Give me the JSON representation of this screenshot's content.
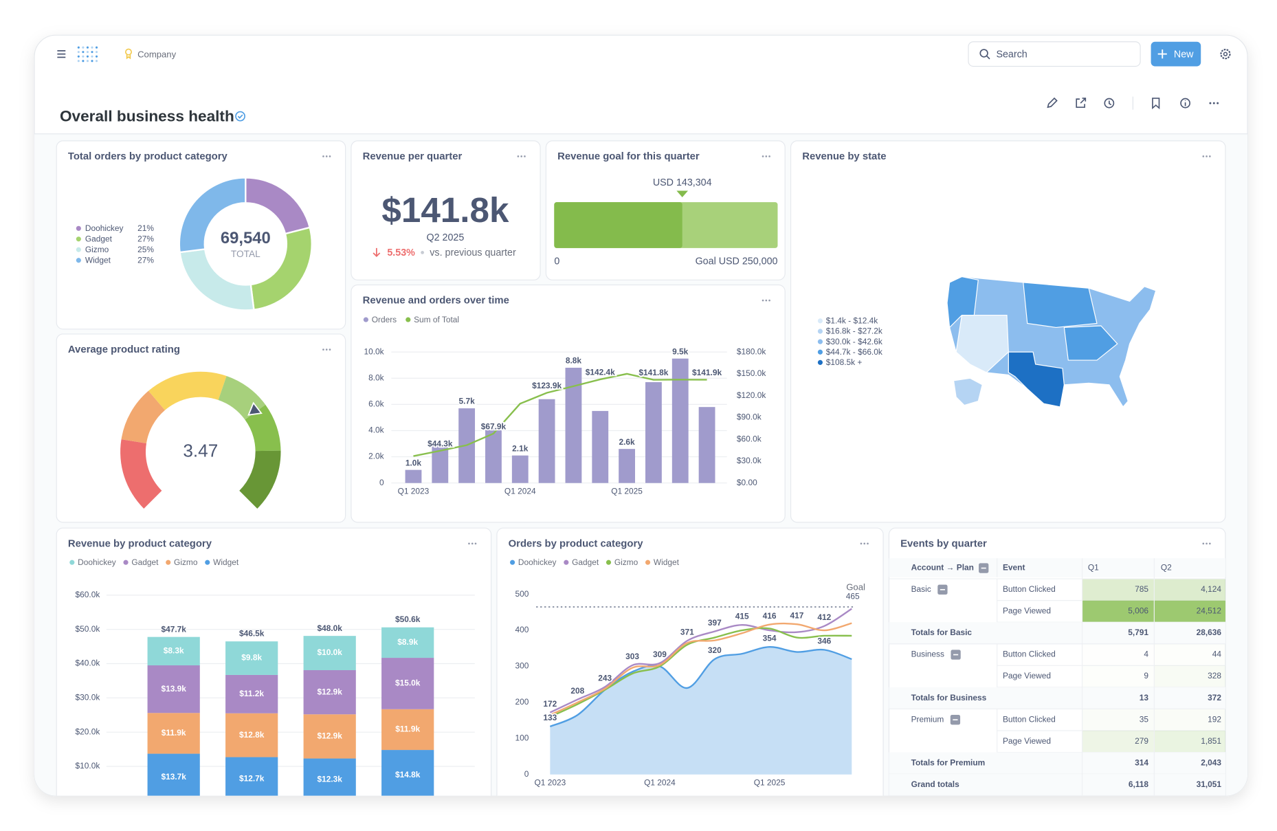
{
  "header": {
    "org": "Company",
    "search": "Search",
    "new_button": "New",
    "title": "Overall business health"
  },
  "chart_data": [
    {
      "type": "donut",
      "title": "Total orders by product category",
      "categories": [
        "Doohickey",
        "Gadget",
        "Gizmo",
        "Widget"
      ],
      "values": [
        21,
        27,
        25,
        27
      ],
      "value_labels": [
        "21%",
        "27%",
        "25%",
        "27%"
      ],
      "colors": [
        "#a989c5",
        "#a5d36e",
        "#c7eaea",
        "#7fb8ea"
      ],
      "total": 69540,
      "total_label": "69,540",
      "center_caption": "TOTAL"
    },
    {
      "type": "scalar",
      "title": "Revenue per quarter",
      "value": 141800,
      "value_label": "$141.8k",
      "period": "Q2 2025",
      "change": 5.53,
      "change_label": "5.53%",
      "direction": "down",
      "comparison": "vs. previous quarter"
    },
    {
      "type": "progress",
      "title": "Revenue goal for this quarter",
      "value": 143304,
      "value_label": "USD 143,304",
      "xlim": [
        0,
        250000
      ],
      "xticks": [
        0,
        {
          "value": 250000,
          "label": "Goal USD 250,000"
        }
      ],
      "colors": [
        "#84bb4c",
        "#a8d17a"
      ]
    },
    {
      "type": "map",
      "title": "Revenue by state",
      "legend": [
        {
          "label": "$1.4k - $12.4k",
          "color": "#d9eaf9"
        },
        {
          "label": "$16.8k - $27.2k",
          "color": "#b5d4f3"
        },
        {
          "label": "$30.0k - $42.6k",
          "color": "#8cbdee"
        },
        {
          "label": "$44.7k - $66.0k",
          "color": "#509ee3"
        },
        {
          "label": "$108.5k +",
          "color": "#1d70c4"
        }
      ]
    },
    {
      "type": "gauge",
      "title": "Average product rating",
      "value": 3.47,
      "range": [
        0,
        5
      ],
      "segments": [
        {
          "from": 0,
          "to": 1,
          "color": "#ed6e6e"
        },
        {
          "from": 1,
          "to": 1.75,
          "color": "#f2a86f"
        },
        {
          "from": 1.75,
          "to": 2.85,
          "color": "#f9d45c"
        },
        {
          "from": 2.85,
          "to": 3.5,
          "color": "#a7d07c"
        },
        {
          "from": 3.5,
          "to": 4.15,
          "color": "#88bf4d"
        },
        {
          "from": 4.15,
          "to": 5,
          "color": "#689636"
        }
      ]
    },
    {
      "type": "combo",
      "title": "Revenue and orders over time",
      "categories": [
        "Q1 2023",
        null,
        null,
        null,
        "Q1 2024",
        null,
        null,
        null,
        "Q1 2025",
        null,
        null,
        null
      ],
      "series": [
        {
          "name": "Orders",
          "display": "bar",
          "color": "#a09bcc",
          "values": [
            1000,
            2800,
            5700,
            4300,
            2100,
            6400,
            8800,
            5500,
            2600,
            7700,
            9500,
            5800
          ],
          "value_labels": [
            "1.0k",
            null,
            "5.7k",
            null,
            "2.1k",
            null,
            "8.8k",
            null,
            "2.6k",
            null,
            "9.5k",
            null
          ]
        },
        {
          "name": "Sum of Total",
          "display": "line",
          "axis": "y2",
          "color": "#88bf4d",
          "values": [
            37000,
            44300,
            52000,
            67900,
            109000,
            123900,
            133000,
            142400,
            150000,
            141800,
            142000,
            141900
          ],
          "value_labels": [
            null,
            "$44.3k",
            null,
            "$67.9k",
            null,
            "$123.9k",
            null,
            "$142.4k",
            null,
            "$141.8k",
            null,
            "$141.9k"
          ]
        }
      ],
      "ylim": [
        0,
        10000
      ],
      "yticks": [
        0,
        {
          "value": 2000,
          "label": "2.0k"
        },
        {
          "value": 4000,
          "label": "4.0k"
        },
        {
          "value": 6000,
          "label": "6.0k"
        },
        {
          "value": 8000,
          "label": "8.0k"
        },
        {
          "value": 10000,
          "label": "10.0k"
        }
      ],
      "y2lim": [
        0,
        180000
      ],
      "y2ticks": [
        {
          "value": 0,
          "label": "$0.00"
        },
        {
          "value": 30000,
          "label": "$30.0k"
        },
        {
          "value": 60000,
          "label": "$60.0k"
        },
        {
          "value": 90000,
          "label": "$90.0k"
        },
        {
          "value": 120000,
          "label": "$120.0k"
        },
        {
          "value": 150000,
          "label": "$150.0k"
        },
        {
          "value": 180000,
          "label": "$180.0k"
        }
      ],
      "grid": true
    },
    {
      "type": "stacked_bar",
      "title": "Revenue by product category",
      "categories": [
        null,
        null,
        null,
        null
      ],
      "series": [
        {
          "name": "Doohickey",
          "color": "#8fd8d8",
          "values": [
            8300,
            9800,
            10000,
            8900
          ],
          "value_labels": [
            "$8.3k",
            "$9.8k",
            "$10.0k",
            "$8.9k"
          ]
        },
        {
          "name": "Gadget",
          "color": "#a989c5",
          "values": [
            13900,
            11200,
            12900,
            15000
          ],
          "value_labels": [
            "$13.9k",
            "$11.2k",
            "$12.9k",
            "$15.0k"
          ]
        },
        {
          "name": "Gizmo",
          "color": "#f2a86f",
          "values": [
            11900,
            12800,
            12900,
            11900
          ],
          "value_labels": [
            "$11.9k",
            "$12.8k",
            "$12.9k",
            "$11.9k"
          ]
        },
        {
          "name": "Widget",
          "color": "#509ee3",
          "values": [
            13700,
            12700,
            12300,
            14800
          ],
          "value_labels": [
            "$13.7k",
            "$12.7k",
            "$12.3k",
            "$14.8k"
          ]
        }
      ],
      "totals": [
        47700,
        46500,
        48000,
        50600
      ],
      "total_labels": [
        "$47.7k",
        "$46.5k",
        "$48.0k",
        "$50.6k"
      ],
      "ylim": [
        0,
        60000
      ],
      "yticks": [
        {
          "value": 10000,
          "label": "$10.0k"
        },
        {
          "value": 20000,
          "label": "$20.0k"
        },
        {
          "value": 30000,
          "label": "$30.0k"
        },
        {
          "value": 40000,
          "label": "$40.0k"
        },
        {
          "value": 50000,
          "label": "$50.0k"
        },
        {
          "value": 60000,
          "label": "$60.0k"
        }
      ],
      "grid": true
    },
    {
      "type": "line_area",
      "title": "Orders by product category",
      "categories": [
        "Q1 2023",
        null,
        null,
        null,
        "Q1 2024",
        null,
        null,
        null,
        "Q1 2025",
        null,
        null,
        null
      ],
      "series": [
        {
          "name": "Doohickey",
          "display": "area",
          "color": "#509ee3",
          "fill": "#c6dff5",
          "values": [
            133,
            165,
            235,
            285,
            300,
            240,
            320,
            335,
            354,
            340,
            346,
            320
          ],
          "value_labels": [
            "133",
            null,
            null,
            null,
            null,
            null,
            "320",
            null,
            "354",
            null,
            "346",
            null
          ]
        },
        {
          "name": "Gadget",
          "display": "line",
          "color": "#a989c5",
          "values": [
            172,
            208,
            243,
            303,
            309,
            371,
            397,
            415,
            400,
            395,
            412,
            460
          ],
          "value_labels": [
            "172",
            "208",
            "243",
            "303",
            "309",
            "371",
            "397",
            "415",
            null,
            null,
            "412",
            null
          ]
        },
        {
          "name": "Gizmo",
          "display": "line",
          "color": "#88bf4d",
          "values": [
            160,
            195,
            235,
            280,
            300,
            360,
            380,
            400,
            405,
            380,
            385,
            385
          ],
          "value_labels": [
            null,
            null,
            null,
            null,
            null,
            null,
            null,
            null,
            null,
            null,
            null,
            null
          ]
        },
        {
          "name": "Widget",
          "display": "line",
          "color": "#f2a86f",
          "values": [
            165,
            200,
            238,
            296,
            304,
            365,
            372,
            392,
            416,
            417,
            400,
            420
          ],
          "value_labels": [
            null,
            null,
            null,
            null,
            null,
            null,
            null,
            null,
            "416",
            "417",
            null,
            null
          ]
        }
      ],
      "goal": {
        "value": 465,
        "label": "Goal"
      },
      "ylim": [
        0,
        500
      ],
      "yticks": [
        0,
        100,
        200,
        300,
        400,
        500
      ],
      "grid": false
    }
  ],
  "table": {
    "title": "Events by quarter",
    "columns": [
      "Account → Plan",
      "Event",
      "Q1",
      "Q2"
    ],
    "groups": [
      {
        "plan": "Basic",
        "rows": [
          [
            "Button Clicked",
            "785",
            "4,124"
          ],
          [
            "Page Viewed",
            "5,006",
            "24,512"
          ]
        ],
        "total_label": "Totals for Basic",
        "totals": [
          "5,791",
          "28,636"
        ]
      },
      {
        "plan": "Business",
        "rows": [
          [
            "Button Clicked",
            "4",
            "44"
          ],
          [
            "Page Viewed",
            "9",
            "328"
          ]
        ],
        "total_label": "Totals for Business",
        "totals": [
          "13",
          "372"
        ]
      },
      {
        "plan": "Premium",
        "rows": [
          [
            "Button Clicked",
            "35",
            "192"
          ],
          [
            "Page Viewed",
            "279",
            "1,851"
          ]
        ],
        "total_label": "Totals for Premium",
        "totals": [
          "314",
          "2,043"
        ]
      }
    ],
    "grand_label": "Grand totals",
    "grand_totals": [
      "6,118",
      "31,051"
    ]
  }
}
